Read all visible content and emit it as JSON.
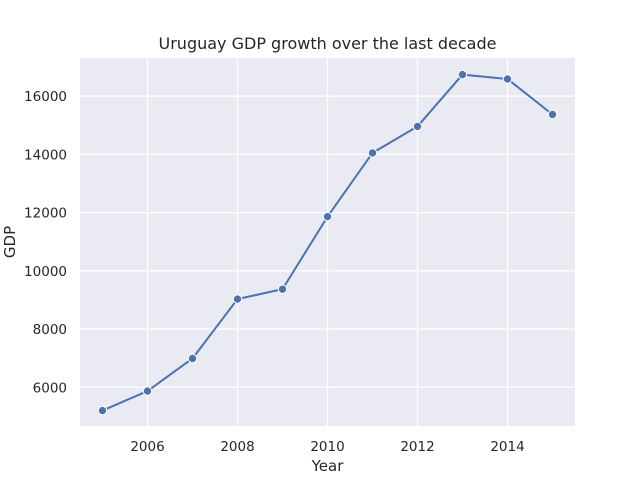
{
  "chart_data": {
    "type": "line",
    "title": "Uruguay GDP growth over the last decade",
    "xlabel": "Year",
    "ylabel": "GDP",
    "x": [
      2005,
      2006,
      2007,
      2008,
      2009,
      2010,
      2011,
      2012,
      2013,
      2014,
      2015
    ],
    "series": [
      {
        "values": [
          5200,
          5870,
          6990,
          9030,
          9370,
          11860,
          14050,
          14960,
          16740,
          16590,
          15370
        ]
      }
    ],
    "xlim": [
      2004.5,
      2015.5
    ],
    "ylim": [
      4670,
      17310
    ],
    "xticks": [
      2006,
      2008,
      2010,
      2012,
      2014
    ],
    "yticks": [
      6000,
      8000,
      10000,
      12000,
      14000,
      16000
    ],
    "grid": true,
    "colors": {
      "background": "#EAEAF2",
      "grid": "#FFFFFF",
      "line": "#4C72B0",
      "text": "#262626"
    }
  }
}
